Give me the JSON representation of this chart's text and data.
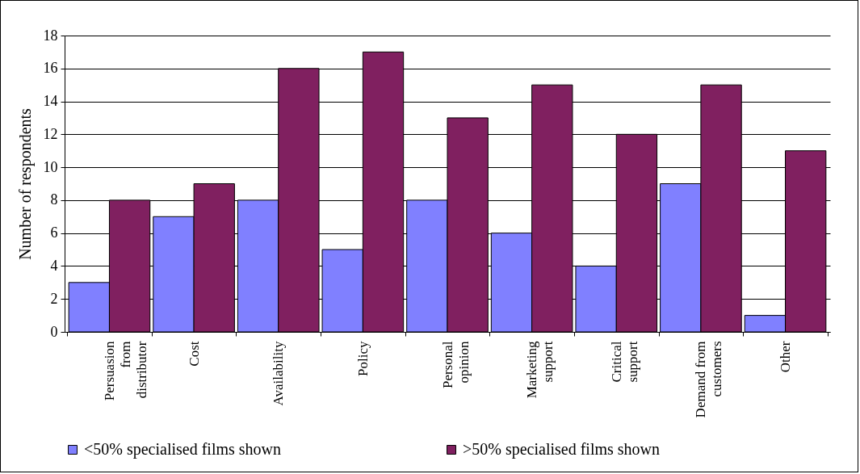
{
  "chart_data": {
    "type": "bar",
    "ylabel": "Number of respondents",
    "categories": [
      "Persuasion from distributor",
      "Cost",
      "Availability",
      "Policy",
      "Personal opinion",
      "Marketing support",
      "Critical support",
      "Demand from customers",
      "Other"
    ],
    "series": [
      {
        "name": "<50% specialised films shown",
        "color": "#8080ff",
        "values": [
          3,
          7,
          8,
          5,
          8,
          6,
          4,
          9,
          1
        ]
      },
      {
        "name": ">50% specialised films shown",
        "color": "#802060",
        "values": [
          8,
          9,
          16,
          17,
          13,
          15,
          12,
          15,
          11
        ]
      }
    ],
    "ylim": [
      0,
      18
    ],
    "yticks": [
      0,
      2,
      4,
      6,
      8,
      10,
      12,
      14,
      16,
      18
    ],
    "grid": "y",
    "legend": "bottom"
  }
}
